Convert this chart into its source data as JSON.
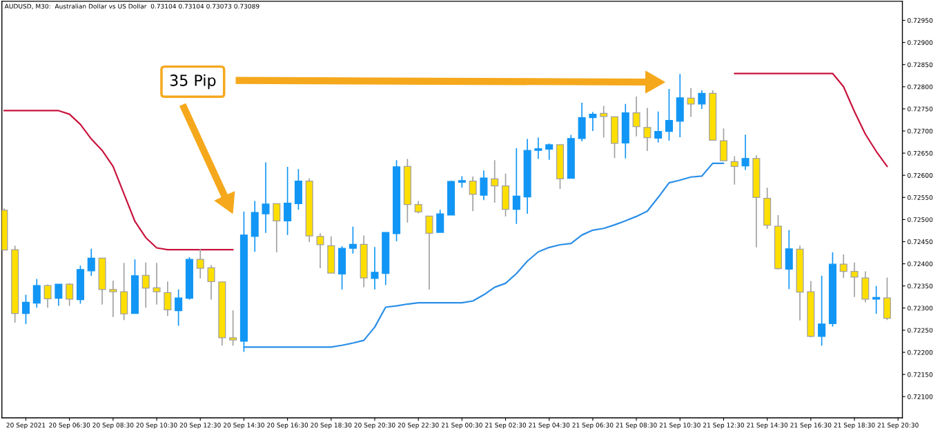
{
  "chart_data": {
    "type": "candlestick",
    "title": "AUDUSD, M30:  Australian Dollar vs US Dollar  0.73104 0.73104 0.73073 0.73089",
    "x": [
      "2021-09-20T03:30",
      "2021-09-20T04:00",
      "2021-09-20T04:30",
      "2021-09-20T05:00",
      "2021-09-20T05:30",
      "2021-09-20T06:00",
      "2021-09-20T06:30",
      "2021-09-20T07:00",
      "2021-09-20T07:30",
      "2021-09-20T08:00",
      "2021-09-20T08:30",
      "2021-09-20T09:00",
      "2021-09-20T09:30",
      "2021-09-20T10:00",
      "2021-09-20T10:30",
      "2021-09-20T11:00",
      "2021-09-20T11:30",
      "2021-09-20T12:00",
      "2021-09-20T12:30",
      "2021-09-20T13:00",
      "2021-09-20T13:30",
      "2021-09-20T14:00",
      "2021-09-20T14:30",
      "2021-09-20T15:00",
      "2021-09-20T15:30",
      "2021-09-20T16:00",
      "2021-09-20T16:30",
      "2021-09-20T17:00",
      "2021-09-20T17:30",
      "2021-09-20T18:00",
      "2021-09-20T18:30",
      "2021-09-20T19:00",
      "2021-09-20T19:30",
      "2021-09-20T20:00",
      "2021-09-20T20:30",
      "2021-09-20T21:00",
      "2021-09-20T21:30",
      "2021-09-20T22:00",
      "2021-09-20T22:30",
      "2021-09-20T23:00",
      "2021-09-20T23:30",
      "2021-09-21T00:00",
      "2021-09-21T00:30",
      "2021-09-21T01:00",
      "2021-09-21T01:30",
      "2021-09-21T02:00",
      "2021-09-21T02:30",
      "2021-09-21T03:00",
      "2021-09-21T03:30",
      "2021-09-21T04:00",
      "2021-09-21T04:30",
      "2021-09-21T05:00",
      "2021-09-21T05:30",
      "2021-09-21T06:00",
      "2021-09-21T06:30",
      "2021-09-21T07:00",
      "2021-09-21T07:30",
      "2021-09-21T08:00",
      "2021-09-21T08:30",
      "2021-09-21T09:00",
      "2021-09-21T09:30",
      "2021-09-21T10:00",
      "2021-09-21T10:30",
      "2021-09-21T11:00",
      "2021-09-21T11:30",
      "2021-09-21T12:00",
      "2021-09-21T12:30",
      "2021-09-21T13:00",
      "2021-09-21T13:30",
      "2021-09-21T14:00",
      "2021-09-21T14:30",
      "2021-09-21T15:00",
      "2021-09-21T15:30",
      "2021-09-21T16:00",
      "2021-09-21T16:30",
      "2021-09-21T17:00",
      "2021-09-21T17:30",
      "2021-09-21T18:00",
      "2021-09-21T18:30",
      "2021-09-21T19:00",
      "2021-09-21T19:30",
      "2021-09-21T20:00"
    ],
    "ohlc": [
      [
        0.72521,
        0.72525,
        0.72431,
        0.72431
      ],
      [
        0.72432,
        0.72441,
        0.72267,
        0.72288
      ],
      [
        0.72288,
        0.7233,
        0.72264,
        0.72313
      ],
      [
        0.72311,
        0.72366,
        0.72301,
        0.72351
      ],
      [
        0.72351,
        0.72353,
        0.72301,
        0.72321
      ],
      [
        0.72322,
        0.72354,
        0.72305,
        0.72354
      ],
      [
        0.72354,
        0.72356,
        0.72305,
        0.7232
      ],
      [
        0.72319,
        0.72396,
        0.7231,
        0.72387
      ],
      [
        0.72384,
        0.72434,
        0.72373,
        0.72413
      ],
      [
        0.72413,
        0.72413,
        0.72308,
        0.72342
      ],
      [
        0.72342,
        0.72362,
        0.7228,
        0.72337
      ],
      [
        0.72337,
        0.72402,
        0.72273,
        0.72287
      ],
      [
        0.72288,
        0.7241,
        0.72288,
        0.72373
      ],
      [
        0.72374,
        0.72403,
        0.72301,
        0.72345
      ],
      [
        0.72346,
        0.72402,
        0.72308,
        0.72337
      ],
      [
        0.72335,
        0.7236,
        0.72282,
        0.72296
      ],
      [
        0.72294,
        0.72342,
        0.7226,
        0.72323
      ],
      [
        0.72322,
        0.72415,
        0.72319,
        0.7241
      ],
      [
        0.7241,
        0.72434,
        0.72367,
        0.7239
      ],
      [
        0.72391,
        0.72397,
        0.72319,
        0.7236
      ],
      [
        0.72359,
        0.72359,
        0.72215,
        0.72233
      ],
      [
        0.72233,
        0.72295,
        0.72215,
        0.72228
      ],
      [
        0.72225,
        0.72518,
        0.72201,
        0.72465
      ],
      [
        0.72462,
        0.72542,
        0.72427,
        0.72516
      ],
      [
        0.72513,
        0.72629,
        0.7247,
        0.72535
      ],
      [
        0.72536,
        0.72536,
        0.72426,
        0.72497
      ],
      [
        0.72497,
        0.72619,
        0.72465,
        0.72537
      ],
      [
        0.72536,
        0.72614,
        0.72522,
        0.72587
      ],
      [
        0.72587,
        0.72593,
        0.72449,
        0.72463
      ],
      [
        0.72462,
        0.72469,
        0.7239,
        0.72443
      ],
      [
        0.72441,
        0.72462,
        0.72379,
        0.72379
      ],
      [
        0.72377,
        0.7244,
        0.72342,
        0.72435
      ],
      [
        0.72435,
        0.72484,
        0.72423,
        0.72444
      ],
      [
        0.72444,
        0.72464,
        0.72347,
        0.72368
      ],
      [
        0.72367,
        0.72438,
        0.72342,
        0.72381
      ],
      [
        0.72378,
        0.72471,
        0.72352,
        0.72471
      ],
      [
        0.72468,
        0.72634,
        0.72451,
        0.72619
      ],
      [
        0.7262,
        0.72637,
        0.72493,
        0.72534
      ],
      [
        0.72534,
        0.72542,
        0.72514,
        0.72517
      ],
      [
        0.72508,
        0.72508,
        0.72342,
        0.72469
      ],
      [
        0.72471,
        0.72522,
        0.72471,
        0.72513
      ],
      [
        0.7251,
        0.72588,
        0.7251,
        0.72586
      ],
      [
        0.72584,
        0.72598,
        0.72572,
        0.72588
      ],
      [
        0.72587,
        0.72597,
        0.72519,
        0.72557
      ],
      [
        0.72555,
        0.72611,
        0.72544,
        0.72594
      ],
      [
        0.72592,
        0.72634,
        0.72538,
        0.72576
      ],
      [
        0.72576,
        0.72604,
        0.72507,
        0.72523
      ],
      [
        0.72523,
        0.72661,
        0.7249,
        0.72553
      ],
      [
        0.72551,
        0.72682,
        0.72513,
        0.72656
      ],
      [
        0.72656,
        0.72685,
        0.72637,
        0.7266
      ],
      [
        0.72659,
        0.72672,
        0.72635,
        0.72669
      ],
      [
        0.72669,
        0.72669,
        0.72569,
        0.72592
      ],
      [
        0.72593,
        0.72691,
        0.72593,
        0.72683
      ],
      [
        0.72683,
        0.72764,
        0.72677,
        0.7273
      ],
      [
        0.7273,
        0.72743,
        0.727,
        0.72738
      ],
      [
        0.7274,
        0.72757,
        0.72685,
        0.72733
      ],
      [
        0.72732,
        0.72732,
        0.72639,
        0.72672
      ],
      [
        0.72673,
        0.72761,
        0.72638,
        0.72741
      ],
      [
        0.72741,
        0.72778,
        0.72688,
        0.7271
      ],
      [
        0.72708,
        0.72752,
        0.72655,
        0.72685
      ],
      [
        0.72684,
        0.72744,
        0.72674,
        0.72699
      ],
      [
        0.72699,
        0.72795,
        0.72678,
        0.72724
      ],
      [
        0.72722,
        0.72829,
        0.72686,
        0.72775
      ],
      [
        0.72774,
        0.72797,
        0.72732,
        0.72761
      ],
      [
        0.72761,
        0.72792,
        0.7275,
        0.72785
      ],
      [
        0.72785,
        0.72792,
        0.72679,
        0.72679
      ],
      [
        0.72678,
        0.72706,
        0.72633,
        0.72633
      ],
      [
        0.72631,
        0.72643,
        0.72579,
        0.7262
      ],
      [
        0.72621,
        0.72692,
        0.72612,
        0.72638
      ],
      [
        0.72638,
        0.72645,
        0.72437,
        0.7255
      ],
      [
        0.72548,
        0.72572,
        0.72479,
        0.72487
      ],
      [
        0.72485,
        0.7251,
        0.72387,
        0.72389
      ],
      [
        0.72388,
        0.72476,
        0.72343,
        0.72434
      ],
      [
        0.72433,
        0.72441,
        0.72272,
        0.72336
      ],
      [
        0.72337,
        0.72361,
        0.72234,
        0.72236
      ],
      [
        0.72236,
        0.72373,
        0.72215,
        0.72264
      ],
      [
        0.72265,
        0.72426,
        0.72258,
        0.72399
      ],
      [
        0.72399,
        0.72421,
        0.72368,
        0.72383
      ],
      [
        0.72383,
        0.72403,
        0.72325,
        0.7237
      ],
      [
        0.72368,
        0.72383,
        0.72313,
        0.7232
      ],
      [
        0.7232,
        0.7235,
        0.72287,
        0.72324
      ],
      [
        0.72323,
        0.72369,
        0.72273,
        0.72277
      ]
    ],
    "colors": [
      "#ffdf00",
      "#ffdf00",
      "#1296f5",
      "#1296f5",
      "#ffdf00",
      "#1296f5",
      "#ffdf00",
      "#1296f5",
      "#1296f5",
      "#ffdf00",
      "#ffdf00",
      "#ffdf00",
      "#1296f5",
      "#ffdf00",
      "#ffdf00",
      "#ffdf00",
      "#1296f5",
      "#1296f5",
      "#ffdf00",
      "#ffdf00",
      "#ffdf00",
      "#ffdf00",
      "#1296f5",
      "#1296f5",
      "#1296f5",
      "#ffdf00",
      "#1296f5",
      "#1296f5",
      "#ffdf00",
      "#ffdf00",
      "#ffdf00",
      "#1296f5",
      "#1296f5",
      "#ffdf00",
      "#1296f5",
      "#1296f5",
      "#1296f5",
      "#ffdf00",
      "#ffdf00",
      "#ffdf00",
      "#1296f5",
      "#1296f5",
      "#1296f5",
      "#ffdf00",
      "#1296f5",
      "#ffdf00",
      "#ffdf00",
      "#1296f5",
      "#1296f5",
      "#1296f5",
      "#1296f5",
      "#ffdf00",
      "#1296f5",
      "#1296f5",
      "#1296f5",
      "#ffdf00",
      "#ffdf00",
      "#1296f5",
      "#ffdf00",
      "#ffdf00",
      "#1296f5",
      "#1296f5",
      "#1296f5",
      "#ffdf00",
      "#1296f5",
      "#ffdf00",
      "#ffdf00",
      "#ffdf00",
      "#1296f5",
      "#ffdf00",
      "#ffdf00",
      "#ffdf00",
      "#1296f5",
      "#ffdf00",
      "#ffdf00",
      "#1296f5",
      "#1296f5",
      "#ffdf00",
      "#ffdf00",
      "#ffdf00",
      "#1296f5",
      "#ffdf00"
    ],
    "series": [
      {
        "type": "line",
        "color": "#c8143c",
        "values": [
          0.72746,
          0.72746,
          0.72746,
          0.72746,
          0.72746,
          0.72746,
          0.72738,
          0.72715,
          0.72682,
          0.72656,
          0.7262,
          0.72558,
          0.72496,
          0.72459,
          0.72436,
          0.72432,
          0.72432,
          0.72432,
          0.72432,
          0.72432,
          0.72432,
          0.72432,
          null,
          null,
          null,
          null,
          null,
          null,
          null,
          null,
          null,
          null,
          null,
          null,
          null,
          null,
          null,
          null,
          null,
          null,
          null,
          null,
          null,
          null,
          null,
          null,
          null,
          null,
          null,
          null,
          null,
          null,
          null,
          null,
          null,
          null,
          null,
          null,
          null,
          null,
          null,
          null,
          null,
          null,
          null,
          null,
          null,
          0.7283,
          0.7283,
          0.7283,
          0.7283,
          0.7283,
          0.7283,
          0.7283,
          0.7283,
          0.7283,
          0.7283,
          0.728,
          0.72744,
          0.72693,
          0.72654,
          0.7262
        ]
      },
      {
        "type": "line",
        "color": "#2a8ee8",
        "values": [
          null,
          null,
          null,
          null,
          null,
          null,
          null,
          null,
          null,
          null,
          null,
          null,
          null,
          null,
          null,
          null,
          null,
          null,
          null,
          null,
          null,
          null,
          0.72212,
          0.72212,
          0.72212,
          0.72212,
          0.72212,
          0.72212,
          0.72212,
          0.72212,
          0.72212,
          0.72216,
          0.72221,
          0.72227,
          0.72257,
          0.72302,
          0.72305,
          0.72309,
          0.72312,
          0.72312,
          0.72312,
          0.72312,
          0.72312,
          0.72316,
          0.7233,
          0.72347,
          0.72356,
          0.72378,
          0.72406,
          0.72427,
          0.72437,
          0.72443,
          0.72446,
          0.72465,
          0.72476,
          0.7248,
          0.72488,
          0.72497,
          0.72507,
          0.72519,
          0.7255,
          0.72583,
          0.72589,
          0.72596,
          0.72598,
          0.72627,
          0.72627,
          null,
          null,
          null,
          null,
          null,
          null,
          null,
          null,
          null,
          null,
          null,
          null,
          null,
          null,
          null
        ]
      }
    ],
    "xlim": [
      "2021-09-20T03:24",
      "2021-09-21T20:42"
    ],
    "xticks": [
      {
        "value": "2021-09-20T04:30",
        "label": "20 Sep 2021"
      },
      {
        "value": "2021-09-20T06:30",
        "label": "20 Sep 06:30"
      },
      {
        "value": "2021-09-20T08:30",
        "label": "20 Sep 08:30"
      },
      {
        "value": "2021-09-20T10:30",
        "label": "20 Sep 10:30"
      },
      {
        "value": "2021-09-20T12:30",
        "label": "20 Sep 12:30"
      },
      {
        "value": "2021-09-20T14:30",
        "label": "20 Sep 14:30"
      },
      {
        "value": "2021-09-20T16:30",
        "label": "20 Sep 16:30"
      },
      {
        "value": "2021-09-20T18:30",
        "label": "20 Sep 18:30"
      },
      {
        "value": "2021-09-20T20:30",
        "label": "20 Sep 20:30"
      },
      {
        "value": "2021-09-20T22:30",
        "label": "20 Sep 22:30"
      },
      {
        "value": "2021-09-21T00:30",
        "label": "21 Sep 00:30"
      },
      {
        "value": "2021-09-21T02:30",
        "label": "21 Sep 02:30"
      },
      {
        "value": "2021-09-21T04:30",
        "label": "21 Sep 04:30"
      },
      {
        "value": "2021-09-21T06:30",
        "label": "21 Sep 06:30"
      },
      {
        "value": "2021-09-21T08:30",
        "label": "21 Sep 08:30"
      },
      {
        "value": "2021-09-21T10:30",
        "label": "21 Sep 10:30"
      },
      {
        "value": "2021-09-21T12:30",
        "label": "21 Sep 12:30"
      },
      {
        "value": "2021-09-21T14:30",
        "label": "21 Sep 14:30"
      },
      {
        "value": "2021-09-21T16:30",
        "label": "21 Sep 16:30"
      },
      {
        "value": "2021-09-21T18:30",
        "label": "21 Sep 18:30"
      },
      {
        "value": "2021-09-21T20:30",
        "label": "21 Sep 20:30"
      }
    ],
    "ylim": [
      0.72052,
      0.72993
    ],
    "yticks": [
      {
        "value": 0.721,
        "label": "0.72100"
      },
      {
        "value": 0.7215,
        "label": "0.72150"
      },
      {
        "value": 0.722,
        "label": "0.72200"
      },
      {
        "value": 0.7225,
        "label": "0.72250"
      },
      {
        "value": 0.723,
        "label": "0.72300"
      },
      {
        "value": 0.7235,
        "label": "0.72350"
      },
      {
        "value": 0.724,
        "label": "0.72400"
      },
      {
        "value": 0.7245,
        "label": "0.72450"
      },
      {
        "value": 0.725,
        "label": "0.72500"
      },
      {
        "value": 0.7255,
        "label": "0.72550"
      },
      {
        "value": 0.726,
        "label": "0.72600"
      },
      {
        "value": 0.7265,
        "label": "0.72650"
      },
      {
        "value": 0.727,
        "label": "0.72700"
      },
      {
        "value": 0.7275,
        "label": "0.72750"
      },
      {
        "value": 0.728,
        "label": "0.72800"
      },
      {
        "value": 0.7285,
        "label": "0.72850"
      },
      {
        "value": 0.729,
        "label": "0.72900"
      },
      {
        "value": 0.7295,
        "label": "0.72950"
      }
    ],
    "annotations": [
      "35 Pip"
    ]
  }
}
